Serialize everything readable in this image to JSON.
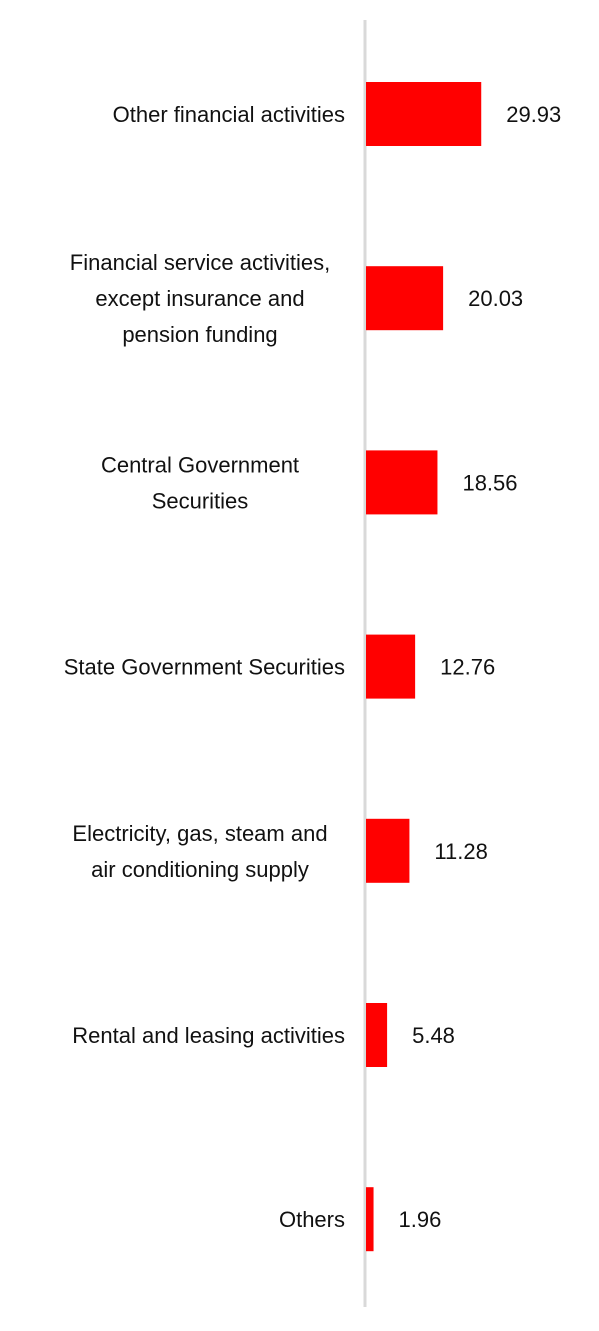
{
  "chart_data": {
    "type": "bar",
    "orientation": "horizontal",
    "categories": [
      "Other financial activities",
      "Financial service activities, except insurance and pension funding",
      "Central Government Securities",
      "State Government Securities",
      "Electricity, gas, steam and air conditioning supply",
      "Rental and leasing activities",
      "Others"
    ],
    "category_lines": [
      [
        "Other financial activities"
      ],
      [
        "Financial service activities,",
        "except insurance and",
        "pension funding"
      ],
      [
        "Central Government",
        "Securities"
      ],
      [
        "State Government Securities"
      ],
      [
        "Electricity, gas, steam and",
        "air conditioning supply"
      ],
      [
        "Rental and leasing activities"
      ],
      [
        "Others"
      ]
    ],
    "values": [
      29.93,
      20.03,
      18.56,
      12.76,
      11.28,
      5.48,
      1.96
    ],
    "value_labels": [
      "29.93",
      "20.03",
      "18.56",
      "12.76",
      "11.28",
      "5.48",
      "1.96"
    ],
    "xlim": [
      0,
      30
    ],
    "bar_color": "#ff0000",
    "axis_color": "#d9d9d9",
    "grid": false,
    "legend": "none",
    "title": "",
    "xlabel": "",
    "ylabel": ""
  }
}
